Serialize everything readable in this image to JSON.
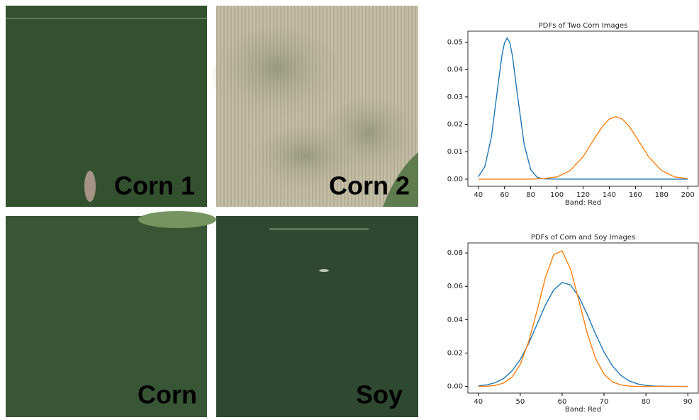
{
  "photos": [
    {
      "label": "Corn 1"
    },
    {
      "label": "Corn 2"
    },
    {
      "label": "Corn"
    },
    {
      "label": "Soy"
    }
  ],
  "chart_data": [
    {
      "type": "line",
      "title": "PDFs of Two Corn Images",
      "xlabel": "Band: Red",
      "x": [
        40,
        45,
        50,
        55,
        58,
        60,
        62,
        64,
        66,
        70,
        75,
        80,
        85,
        90,
        100,
        110,
        120,
        130,
        135,
        140,
        145,
        150,
        155,
        160,
        170,
        180,
        190,
        200
      ],
      "series": [
        {
          "color": "#1f77b4",
          "values": [
            0.0009,
            0.0046,
            0.0155,
            0.0342,
            0.0451,
            0.0498,
            0.0515,
            0.0498,
            0.0451,
            0.0302,
            0.0126,
            0.0035,
            0.0006,
            0.0001,
            0,
            0,
            0,
            0,
            0,
            0,
            0,
            0,
            0,
            0,
            0,
            0,
            0,
            0
          ]
        },
        {
          "color": "#ff7f0e",
          "values": [
            0,
            0,
            0,
            0,
            0,
            0,
            0,
            0,
            0,
            0,
            0,
            0,
            0.0001,
            0.0002,
            0.0008,
            0.0031,
            0.0082,
            0.0158,
            0.0194,
            0.0219,
            0.0228,
            0.0219,
            0.0194,
            0.0158,
            0.0082,
            0.0031,
            0.0008,
            0.0002
          ]
        }
      ],
      "xlim": [
        32,
        208
      ],
      "xticks": [
        40,
        60,
        80,
        100,
        120,
        140,
        160,
        180,
        200
      ],
      "ylim": [
        -0.0026,
        0.054
      ],
      "yticks": [
        {
          "value": 0,
          "label": "0.00"
        },
        {
          "value": 0.01,
          "label": "0.01"
        },
        {
          "value": 0.02,
          "label": "0.02"
        },
        {
          "value": 0.03,
          "label": "0.03"
        },
        {
          "value": 0.04,
          "label": "0.04"
        },
        {
          "value": 0.05,
          "label": "0.05"
        }
      ]
    },
    {
      "type": "line",
      "title": "PDFs of Corn and Soy Images",
      "xlabel": "Band: Red",
      "x": [
        40,
        42,
        44,
        46,
        48,
        50,
        52,
        54,
        56,
        58,
        60,
        62,
        64,
        66,
        68,
        70,
        72,
        74,
        76,
        78,
        80,
        82,
        84,
        86,
        88,
        90
      ],
      "series": [
        {
          "color": "#1f77b4",
          "values": [
            0.0004,
            0.0009,
            0.0022,
            0.0047,
            0.0092,
            0.0161,
            0.0257,
            0.0372,
            0.0487,
            0.0579,
            0.0623,
            0.0608,
            0.0538,
            0.0431,
            0.0313,
            0.0206,
            0.0123,
            0.0067,
            0.0033,
            0.0015,
            0.0006,
            0.0002,
            0.0001,
            0,
            0,
            0
          ]
        },
        {
          "color": "#ff7f0e",
          "values": [
            0,
            0.0001,
            0.0006,
            0.002,
            0.0055,
            0.0132,
            0.0267,
            0.0453,
            0.0652,
            0.0791,
            0.0812,
            0.0703,
            0.0515,
            0.0318,
            0.0166,
            0.0073,
            0.0027,
            0.0009,
            0.0002,
            0,
            0,
            0,
            0,
            0,
            0,
            0
          ]
        }
      ],
      "xlim": [
        37.5,
        92.5
      ],
      "xticks": [
        40,
        50,
        60,
        70,
        80,
        90
      ],
      "ylim": [
        -0.004,
        0.086
      ],
      "yticks": [
        {
          "value": 0,
          "label": "0.00"
        },
        {
          "value": 0.02,
          "label": "0.02"
        },
        {
          "value": 0.04,
          "label": "0.04"
        },
        {
          "value": 0.06,
          "label": "0.06"
        },
        {
          "value": 0.08,
          "label": "0.08"
        }
      ]
    }
  ]
}
